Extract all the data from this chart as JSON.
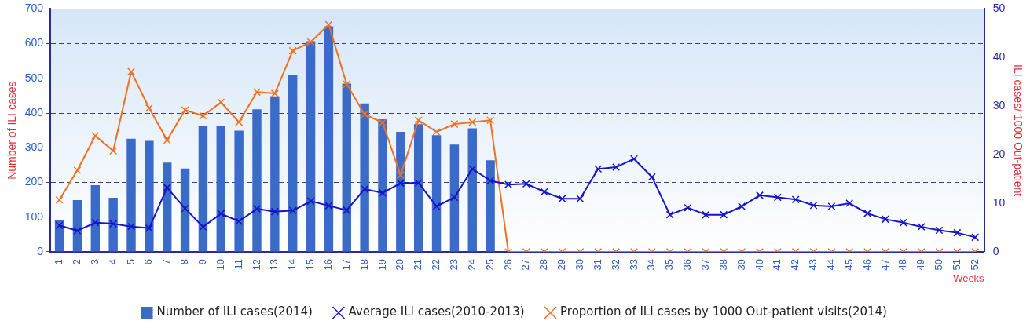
{
  "chart_data": {
    "type": "bar",
    "categories": [
      "1",
      "2",
      "3",
      "4",
      "5",
      "6",
      "7",
      "8",
      "9",
      "10",
      "11",
      "12",
      "13",
      "14",
      "15",
      "16",
      "17",
      "18",
      "19",
      "20",
      "21",
      "22",
      "23",
      "24",
      "25",
      "26",
      "27",
      "28",
      "29",
      "30",
      "31",
      "32",
      "33",
      "34",
      "35",
      "36",
      "37",
      "38",
      "39",
      "40",
      "41",
      "42",
      "43",
      "44",
      "45",
      "46",
      "47",
      "48",
      "49",
      "50",
      "51",
      "52"
    ],
    "series": [
      {
        "name": "Number of ILI cases(2014)",
        "color": "#3a6bc8",
        "values": [
          92,
          149,
          192,
          156,
          326,
          320,
          257,
          240,
          362,
          362,
          349,
          411,
          448,
          510,
          607,
          650,
          485,
          428,
          382,
          346,
          368,
          336,
          309,
          356,
          264,
          null,
          null,
          null,
          null,
          null,
          null,
          null,
          null,
          null,
          null,
          null,
          null,
          null,
          null,
          null,
          null,
          null,
          null,
          null,
          null,
          null,
          null,
          null,
          null,
          null,
          null,
          null
        ]
      },
      {
        "name": "Average ILI cases(2010-2013)",
        "type": "line",
        "color": "#1414c8",
        "values": [
          76,
          61,
          84,
          81,
          73,
          68,
          185,
          125,
          72,
          110,
          88,
          124,
          116,
          119,
          146,
          133,
          120,
          181,
          170,
          198,
          199,
          131,
          157,
          239,
          205,
          194,
          196,
          173,
          153,
          153,
          239,
          244,
          268,
          216,
          107,
          127,
          107,
          107,
          131,
          163,
          157,
          151,
          134,
          131,
          140,
          111,
          94,
          84,
          72,
          62,
          55,
          42
        ]
      },
      {
        "name": "Proportion of ILI cases by 1000 Out-patient visits(2014)",
        "type": "line",
        "axis": "y2",
        "color": "#f07020",
        "values": [
          10.7,
          16.8,
          23.9,
          20.8,
          37.1,
          29.6,
          23.0,
          29.2,
          28.0,
          30.8,
          26.7,
          32.9,
          32.6,
          41.4,
          43.2,
          46.8,
          34.5,
          28.3,
          26.6,
          15.8,
          27.1,
          24.7,
          26.3,
          26.7,
          27.1,
          0,
          0,
          0,
          0,
          0,
          0,
          0,
          0,
          0,
          0,
          0,
          0,
          0,
          0,
          0,
          0,
          0,
          0,
          0,
          0,
          0,
          0,
          0,
          0,
          0,
          0,
          0
        ]
      }
    ],
    "xlabel": "Weeks",
    "ylabel": "Number of ILI cases",
    "y2label": "ILI cases/ 1000 Out-patient",
    "ylim": [
      0,
      700
    ],
    "yticks": [
      0,
      100,
      200,
      300,
      400,
      500,
      600,
      700
    ],
    "y2lim": [
      0,
      50
    ],
    "y2ticks": [
      0,
      10,
      20,
      30,
      40,
      50
    ],
    "grid": "y",
    "legend": "bottom",
    "marker": "cross",
    "line_style": "solid"
  }
}
